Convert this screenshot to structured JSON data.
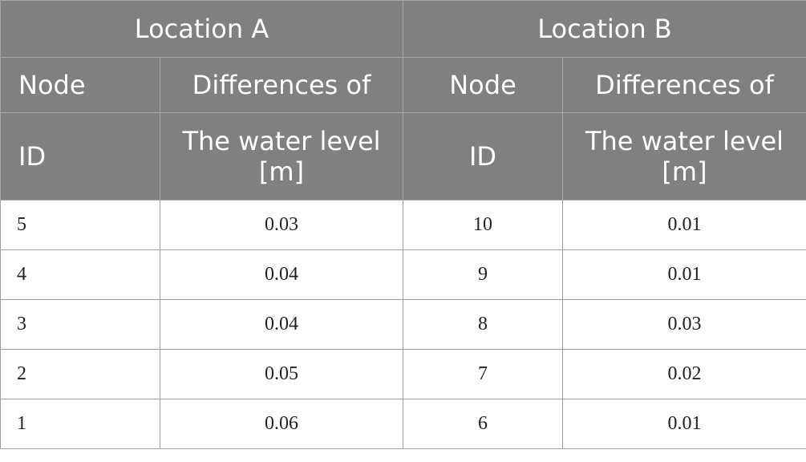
{
  "table": {
    "locations": [
      "Location A",
      "Location B"
    ],
    "col_headers": {
      "node_top": "Node",
      "node_bottom": "ID",
      "diff_top": "Differences of",
      "diff_line1": "The water level",
      "diff_line2": "[m]"
    },
    "rows": [
      {
        "a_node": "5",
        "a_diff": "0.03",
        "b_node": "10",
        "b_diff": "0.01"
      },
      {
        "a_node": "4",
        "a_diff": "0.04",
        "b_node": "9",
        "b_diff": "0.01"
      },
      {
        "a_node": "3",
        "a_diff": "0.04",
        "b_node": "8",
        "b_diff": "0.03"
      },
      {
        "a_node": "2",
        "a_diff": "0.05",
        "b_node": "7",
        "b_diff": "0.02"
      },
      {
        "a_node": "1",
        "a_diff": "0.06",
        "b_node": "6",
        "b_diff": "0.01"
      }
    ]
  }
}
